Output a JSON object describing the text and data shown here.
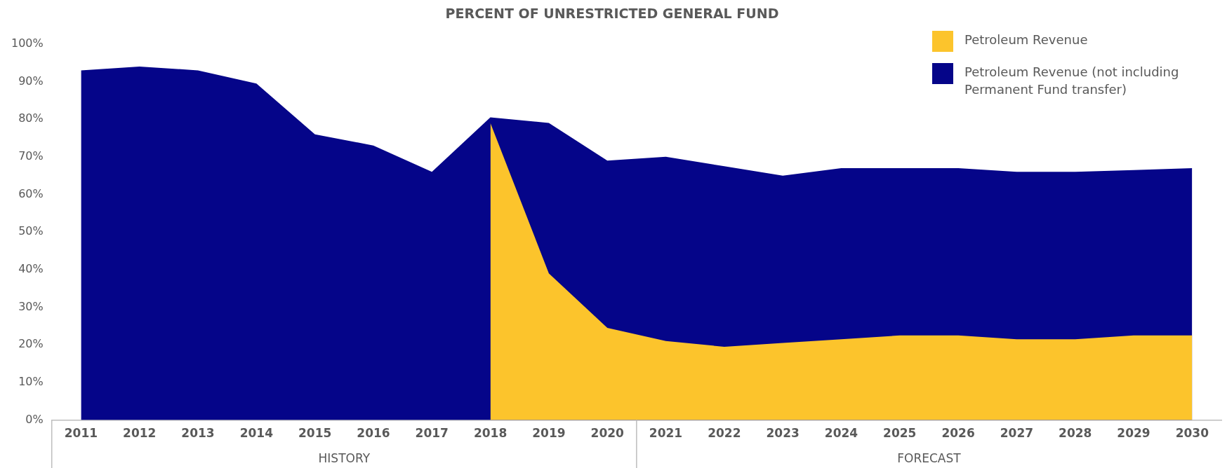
{
  "chart_data": {
    "type": "area",
    "title": "PERCENT OF UNRESTRICTED GENERAL FUND",
    "categories": [
      "2011",
      "2012",
      "2013",
      "2014",
      "2015",
      "2016",
      "2017",
      "2018",
      "2019",
      "2020",
      "2021",
      "2022",
      "2023",
      "2024",
      "2025",
      "2026",
      "2027",
      "2028",
      "2029",
      "2030"
    ],
    "series": [
      {
        "name": "Petroleum Revenue",
        "color": "#fcc42c",
        "values": [
          null,
          null,
          null,
          null,
          null,
          null,
          null,
          79,
          39,
          24.5,
          21,
          19.5,
          20.5,
          21.5,
          22.5,
          22.5,
          21.5,
          21.5,
          22.5,
          22.5
        ]
      },
      {
        "name": "Petroleum Revenue (not including Permanent Fund transfer)",
        "color": "#050589",
        "values": [
          93,
          94,
          93,
          89.5,
          76,
          73,
          66,
          80.5,
          79,
          69,
          70,
          67.5,
          65,
          67,
          67,
          67,
          66,
          66,
          66.5,
          67
        ]
      }
    ],
    "ylim": [
      0,
      100
    ],
    "yticks": [
      {
        "value": 0,
        "label": "0%"
      },
      {
        "value": 10,
        "label": "10%"
      },
      {
        "value": 20,
        "label": "20%"
      },
      {
        "value": 30,
        "label": "30%"
      },
      {
        "value": 40,
        "label": "40%"
      },
      {
        "value": 50,
        "label": "50%"
      },
      {
        "value": 60,
        "label": "60%"
      },
      {
        "value": 70,
        "label": "70%"
      },
      {
        "value": 80,
        "label": "80%"
      },
      {
        "value": 90,
        "label": "90%"
      },
      {
        "value": 100,
        "label": "100%"
      }
    ],
    "annotations": [
      "HISTORY",
      "FORECAST"
    ],
    "legend": "top right",
    "grid": false
  }
}
